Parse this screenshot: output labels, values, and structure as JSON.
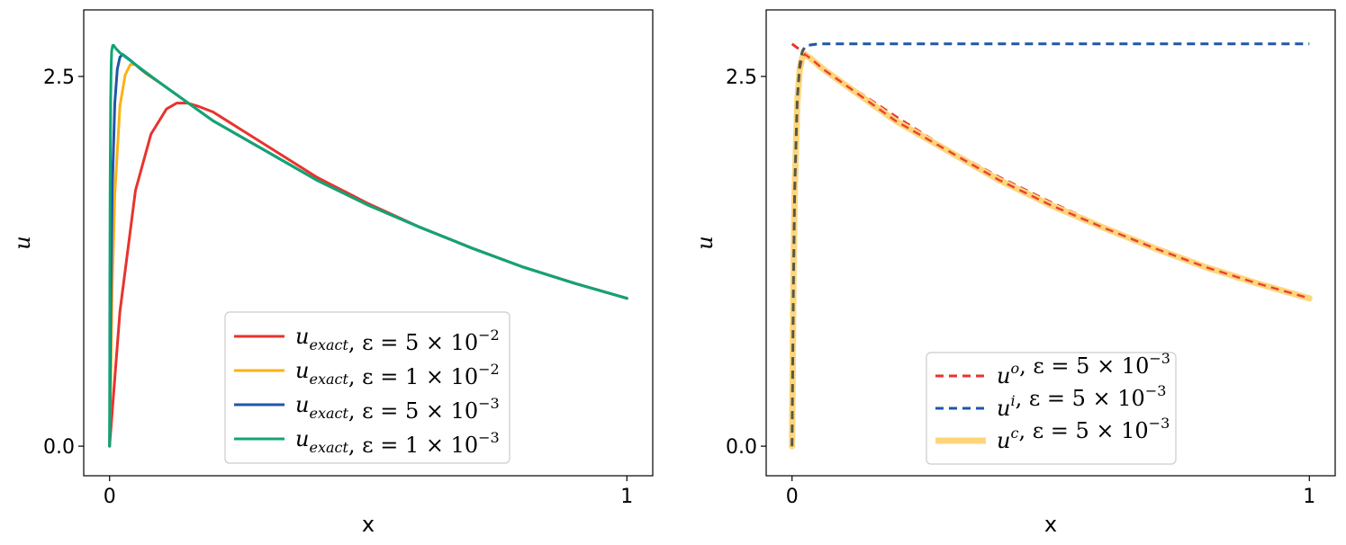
{
  "chart_data": [
    {
      "type": "line",
      "xlabel": "x",
      "ylabel": "u",
      "xlim": [
        -0.05,
        1.05
      ],
      "ylim": [
        -0.2,
        2.95
      ],
      "xticks": [
        "0",
        "1"
      ],
      "yticks": [
        "0.0",
        "2.5"
      ],
      "legend_position": "lower center",
      "grid": false,
      "series": [
        {
          "name": "u_exact, ε = 5×10^-2",
          "label_main": "u",
          "label_sub": "exact",
          "label_rest": ", ε = 5 × 10",
          "label_exp": "−2",
          "color": "#e8332e",
          "style": "solid",
          "epsilon": 0.05,
          "x": [
            0,
            0.02,
            0.05,
            0.08,
            0.11,
            0.13,
            0.15,
            0.17,
            0.2,
            0.25,
            0.3,
            0.4,
            0.5,
            0.6,
            0.7,
            0.8,
            0.9,
            1.0
          ],
          "y": [
            0.0,
            0.91,
            1.73,
            2.11,
            2.28,
            2.32,
            2.32,
            2.3,
            2.26,
            2.15,
            2.04,
            1.82,
            1.64,
            1.48,
            1.34,
            1.21,
            1.1,
            1.0
          ]
        },
        {
          "name": "u_exact, ε = 1×10^-2",
          "label_main": "u",
          "label_sub": "exact",
          "label_rest": ", ε = 1 × 10",
          "label_exp": "−2",
          "color": "#fbb116",
          "style": "solid",
          "epsilon": 0.01,
          "x": [
            0,
            0.005,
            0.01,
            0.02,
            0.03,
            0.04,
            0.05,
            0.07,
            0.1,
            0.2,
            0.3,
            0.4,
            0.5,
            0.6,
            0.7,
            0.8,
            0.9,
            1.0
          ],
          "y": [
            0.0,
            1.06,
            1.7,
            2.3,
            2.51,
            2.58,
            2.58,
            2.52,
            2.45,
            2.2,
            2.0,
            1.8,
            1.63,
            1.48,
            1.34,
            1.21,
            1.1,
            1.0
          ]
        },
        {
          "name": "u_exact, ε = 5×10^-3",
          "label_main": "u",
          "label_sub": "exact",
          "label_rest": ", ε = 5 × 10",
          "label_exp": "−3",
          "color": "#1f56a8",
          "style": "solid",
          "epsilon": 0.005,
          "x": [
            0,
            0.0025,
            0.005,
            0.01,
            0.015,
            0.02,
            0.025,
            0.04,
            0.06,
            0.1,
            0.2,
            0.3,
            0.4,
            0.5,
            0.6,
            0.7,
            0.8,
            0.9,
            1.0
          ],
          "y": [
            0.0,
            1.07,
            1.71,
            2.32,
            2.55,
            2.63,
            2.65,
            2.61,
            2.55,
            2.45,
            2.2,
            2.0,
            1.8,
            1.63,
            1.48,
            1.34,
            1.21,
            1.1,
            1.0
          ]
        },
        {
          "name": "u_exact, ε = 1×10^-3",
          "label_main": "u",
          "label_sub": "exact",
          "label_rest": ", ε = 1 × 10",
          "label_exp": "−3",
          "color": "#12a474",
          "style": "solid",
          "epsilon": 0.001,
          "x": [
            0,
            0.0005,
            0.001,
            0.002,
            0.003,
            0.004,
            0.006,
            0.008,
            0.012,
            0.02,
            0.05,
            0.1,
            0.2,
            0.3,
            0.4,
            0.5,
            0.6,
            0.7,
            0.8,
            0.9,
            1.0
          ],
          "y": [
            0.0,
            1.07,
            1.72,
            2.34,
            2.58,
            2.67,
            2.71,
            2.71,
            2.69,
            2.66,
            2.58,
            2.45,
            2.2,
            2.0,
            1.8,
            1.63,
            1.48,
            1.34,
            1.21,
            1.1,
            1.0
          ]
        }
      ]
    },
    {
      "type": "line",
      "xlabel": "x",
      "ylabel": "u",
      "xlim": [
        -0.05,
        1.05
      ],
      "ylim": [
        -0.2,
        2.95
      ],
      "xticks": [
        "0",
        "1"
      ],
      "yticks": [
        "0.0",
        "2.5"
      ],
      "legend_position": "lower center",
      "grid": false,
      "series": [
        {
          "name": "u^o, ε = 5×10^-3",
          "label_main": "u",
          "label_sup": "o",
          "label_rest": ", ε = 5 × 10",
          "label_exp": "−3",
          "color": "#e8332e",
          "style": "dashed",
          "epsilon": 0.005,
          "x": [
            0,
            0.1,
            0.2,
            0.3,
            0.4,
            0.5,
            0.6,
            0.7,
            0.8,
            0.9,
            1.0
          ],
          "y": [
            2.72,
            2.46,
            2.23,
            2.01,
            1.82,
            1.65,
            1.49,
            1.35,
            1.22,
            1.11,
            1.0
          ]
        },
        {
          "name": "u^i, ε = 5×10^-3",
          "label_main": "u",
          "label_sup": "i",
          "label_rest": ", ε = 5 × 10",
          "label_exp": "−3",
          "color": "#1f56a8",
          "style": "dashed",
          "epsilon": 0.005,
          "x": [
            0,
            0.0025,
            0.005,
            0.01,
            0.015,
            0.02,
            0.025,
            0.03,
            0.05,
            0.1,
            0.5,
            1.0
          ],
          "y": [
            0.0,
            1.07,
            1.72,
            2.35,
            2.58,
            2.67,
            2.7,
            2.71,
            2.72,
            2.72,
            2.72,
            2.72
          ]
        },
        {
          "name": "u^c, ε = 5×10^-3",
          "label_main": "u",
          "label_sup": "c",
          "label_rest": ", ε = 5 × 10",
          "label_exp": "−3",
          "color": "#fed67a",
          "style": "thick",
          "epsilon": 0.005,
          "x": [
            0,
            0.0025,
            0.005,
            0.01,
            0.015,
            0.02,
            0.025,
            0.04,
            0.06,
            0.1,
            0.2,
            0.3,
            0.4,
            0.5,
            0.6,
            0.7,
            0.8,
            0.9,
            1.0
          ],
          "y": [
            0.0,
            1.07,
            1.71,
            2.32,
            2.55,
            2.63,
            2.65,
            2.61,
            2.55,
            2.45,
            2.2,
            2.0,
            1.8,
            1.63,
            1.48,
            1.34,
            1.21,
            1.1,
            1.0
          ]
        }
      ]
    }
  ]
}
